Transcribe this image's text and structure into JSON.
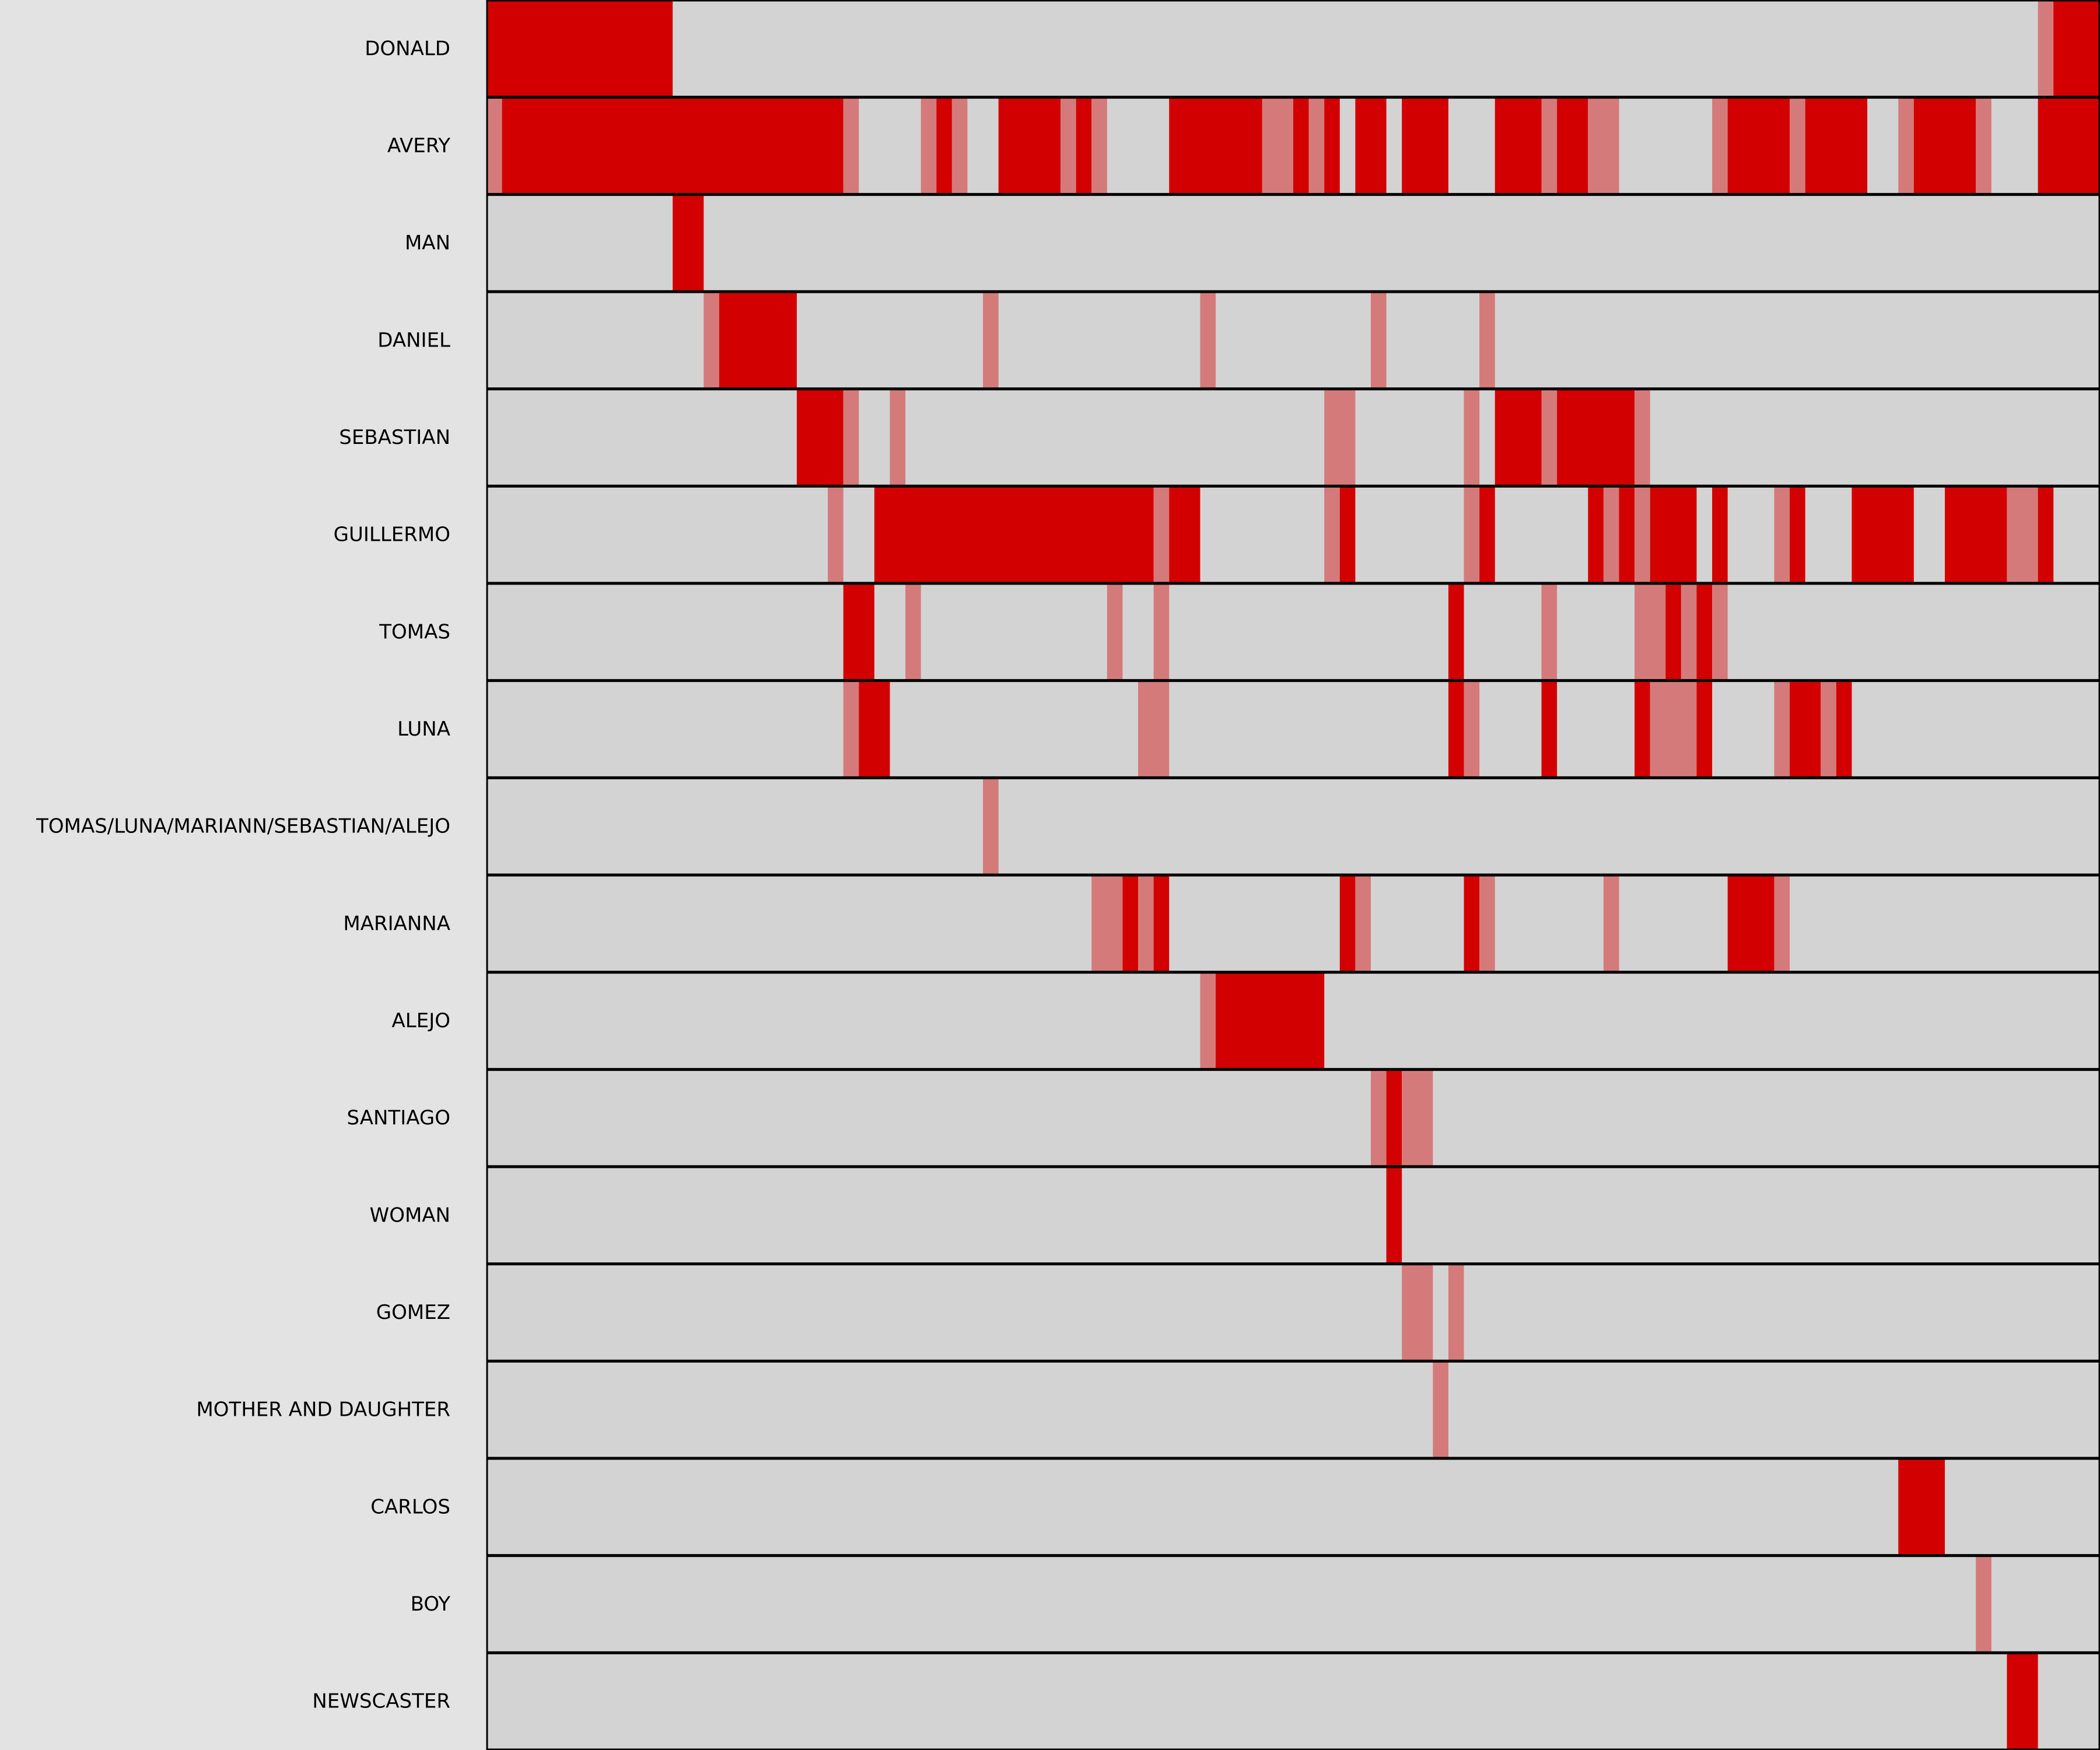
{
  "chart_data": {
    "type": "heatmap",
    "title": "",
    "xlabel": "",
    "ylabel": "",
    "xlim": [
      0,
      104
    ],
    "grid": false,
    "colors": {
      "background": "#e3e3e3",
      "track": "#d3d3d3",
      "strong": "#d30000",
      "weak": "#d57a7a",
      "border": "#000000",
      "label": "#000000"
    },
    "value_legend": {
      "strong": "dark red segment",
      "weak": "light red segment"
    },
    "rows": [
      {
        "label": "DONALD",
        "segments": [
          {
            "start": 0,
            "end": 12,
            "level": "strong"
          },
          {
            "start": 100,
            "end": 101,
            "level": "weak"
          },
          {
            "start": 101,
            "end": 104,
            "level": "strong"
          }
        ]
      },
      {
        "label": "AVERY",
        "segments": [
          {
            "start": 0,
            "end": 1,
            "level": "weak"
          },
          {
            "start": 1,
            "end": 23,
            "level": "strong"
          },
          {
            "start": 23,
            "end": 24,
            "level": "weak"
          },
          {
            "start": 28,
            "end": 29,
            "level": "weak"
          },
          {
            "start": 29,
            "end": 30,
            "level": "strong"
          },
          {
            "start": 30,
            "end": 31,
            "level": "weak"
          },
          {
            "start": 33,
            "end": 37,
            "level": "strong"
          },
          {
            "start": 37,
            "end": 38,
            "level": "weak"
          },
          {
            "start": 38,
            "end": 39,
            "level": "strong"
          },
          {
            "start": 39,
            "end": 40,
            "level": "weak"
          },
          {
            "start": 44,
            "end": 50,
            "level": "strong"
          },
          {
            "start": 50,
            "end": 52,
            "level": "weak"
          },
          {
            "start": 52,
            "end": 53,
            "level": "strong"
          },
          {
            "start": 53,
            "end": 54,
            "level": "weak"
          },
          {
            "start": 54,
            "end": 55,
            "level": "strong"
          },
          {
            "start": 56,
            "end": 58,
            "level": "strong"
          },
          {
            "start": 59,
            "end": 62,
            "level": "strong"
          },
          {
            "start": 65,
            "end": 68,
            "level": "strong"
          },
          {
            "start": 68,
            "end": 69,
            "level": "weak"
          },
          {
            "start": 69,
            "end": 71,
            "level": "strong"
          },
          {
            "start": 71,
            "end": 73,
            "level": "weak"
          },
          {
            "start": 79,
            "end": 80,
            "level": "weak"
          },
          {
            "start": 80,
            "end": 84,
            "level": "strong"
          },
          {
            "start": 84,
            "end": 85,
            "level": "weak"
          },
          {
            "start": 85,
            "end": 89,
            "level": "strong"
          },
          {
            "start": 91,
            "end": 92,
            "level": "weak"
          },
          {
            "start": 92,
            "end": 96,
            "level": "strong"
          },
          {
            "start": 96,
            "end": 97,
            "level": "weak"
          },
          {
            "start": 100,
            "end": 104,
            "level": "strong"
          }
        ]
      },
      {
        "label": "MAN",
        "segments": [
          {
            "start": 12,
            "end": 14,
            "level": "strong"
          }
        ]
      },
      {
        "label": "DANIEL",
        "segments": [
          {
            "start": 14,
            "end": 15,
            "level": "weak"
          },
          {
            "start": 15,
            "end": 20,
            "level": "strong"
          },
          {
            "start": 32,
            "end": 33,
            "level": "weak"
          },
          {
            "start": 46,
            "end": 47,
            "level": "weak"
          },
          {
            "start": 57,
            "end": 58,
            "level": "weak"
          },
          {
            "start": 64,
            "end": 65,
            "level": "weak"
          }
        ]
      },
      {
        "label": "SEBASTIAN",
        "segments": [
          {
            "start": 20,
            "end": 23,
            "level": "strong"
          },
          {
            "start": 23,
            "end": 24,
            "level": "weak"
          },
          {
            "start": 26,
            "end": 27,
            "level": "weak"
          },
          {
            "start": 54,
            "end": 56,
            "level": "weak"
          },
          {
            "start": 63,
            "end": 64,
            "level": "weak"
          },
          {
            "start": 65,
            "end": 68,
            "level": "strong"
          },
          {
            "start": 68,
            "end": 69,
            "level": "weak"
          },
          {
            "start": 69,
            "end": 74,
            "level": "strong"
          },
          {
            "start": 74,
            "end": 75,
            "level": "weak"
          }
        ]
      },
      {
        "label": "GUILLERMO",
        "segments": [
          {
            "start": 22,
            "end": 23,
            "level": "weak"
          },
          {
            "start": 25,
            "end": 43,
            "level": "strong"
          },
          {
            "start": 43,
            "end": 44,
            "level": "weak"
          },
          {
            "start": 44,
            "end": 46,
            "level": "strong"
          },
          {
            "start": 54,
            "end": 55,
            "level": "weak"
          },
          {
            "start": 55,
            "end": 56,
            "level": "strong"
          },
          {
            "start": 63,
            "end": 64,
            "level": "weak"
          },
          {
            "start": 64,
            "end": 65,
            "level": "strong"
          },
          {
            "start": 71,
            "end": 72,
            "level": "strong"
          },
          {
            "start": 72,
            "end": 73,
            "level": "weak"
          },
          {
            "start": 73,
            "end": 74,
            "level": "strong"
          },
          {
            "start": 74,
            "end": 75,
            "level": "weak"
          },
          {
            "start": 75,
            "end": 78,
            "level": "strong"
          },
          {
            "start": 79,
            "end": 80,
            "level": "strong"
          },
          {
            "start": 83,
            "end": 84,
            "level": "weak"
          },
          {
            "start": 84,
            "end": 85,
            "level": "strong"
          },
          {
            "start": 88,
            "end": 92,
            "level": "strong"
          },
          {
            "start": 94,
            "end": 98,
            "level": "strong"
          },
          {
            "start": 98,
            "end": 100,
            "level": "weak"
          },
          {
            "start": 100,
            "end": 101,
            "level": "strong"
          }
        ]
      },
      {
        "label": "TOMAS",
        "segments": [
          {
            "start": 23,
            "end": 25,
            "level": "strong"
          },
          {
            "start": 27,
            "end": 28,
            "level": "weak"
          },
          {
            "start": 40,
            "end": 41,
            "level": "weak"
          },
          {
            "start": 43,
            "end": 44,
            "level": "weak"
          },
          {
            "start": 62,
            "end": 63,
            "level": "strong"
          },
          {
            "start": 68,
            "end": 69,
            "level": "weak"
          },
          {
            "start": 74,
            "end": 76,
            "level": "weak"
          },
          {
            "start": 76,
            "end": 77,
            "level": "strong"
          },
          {
            "start": 77,
            "end": 78,
            "level": "weak"
          },
          {
            "start": 78,
            "end": 79,
            "level": "strong"
          },
          {
            "start": 79,
            "end": 80,
            "level": "weak"
          }
        ]
      },
      {
        "label": "LUNA",
        "segments": [
          {
            "start": 23,
            "end": 24,
            "level": "weak"
          },
          {
            "start": 24,
            "end": 26,
            "level": "strong"
          },
          {
            "start": 42,
            "end": 44,
            "level": "weak"
          },
          {
            "start": 62,
            "end": 63,
            "level": "strong"
          },
          {
            "start": 63,
            "end": 64,
            "level": "weak"
          },
          {
            "start": 68,
            "end": 69,
            "level": "strong"
          },
          {
            "start": 74,
            "end": 75,
            "level": "strong"
          },
          {
            "start": 75,
            "end": 78,
            "level": "weak"
          },
          {
            "start": 78,
            "end": 79,
            "level": "strong"
          },
          {
            "start": 83,
            "end": 84,
            "level": "weak"
          },
          {
            "start": 84,
            "end": 86,
            "level": "strong"
          },
          {
            "start": 86,
            "end": 87,
            "level": "weak"
          },
          {
            "start": 87,
            "end": 88,
            "level": "strong"
          }
        ]
      },
      {
        "label": "TOMAS/LUNA/MARIANN/SEBASTIAN/ALEJO",
        "segments": [
          {
            "start": 32,
            "end": 33,
            "level": "weak"
          }
        ]
      },
      {
        "label": "MARIANNA",
        "segments": [
          {
            "start": 39,
            "end": 41,
            "level": "weak"
          },
          {
            "start": 41,
            "end": 42,
            "level": "strong"
          },
          {
            "start": 42,
            "end": 43,
            "level": "weak"
          },
          {
            "start": 43,
            "end": 44,
            "level": "strong"
          },
          {
            "start": 55,
            "end": 56,
            "level": "strong"
          },
          {
            "start": 56,
            "end": 57,
            "level": "weak"
          },
          {
            "start": 63,
            "end": 64,
            "level": "strong"
          },
          {
            "start": 64,
            "end": 65,
            "level": "weak"
          },
          {
            "start": 72,
            "end": 73,
            "level": "weak"
          },
          {
            "start": 80,
            "end": 83,
            "level": "strong"
          },
          {
            "start": 83,
            "end": 84,
            "level": "weak"
          }
        ]
      },
      {
        "label": "ALEJO",
        "segments": [
          {
            "start": 46,
            "end": 47,
            "level": "weak"
          },
          {
            "start": 47,
            "end": 54,
            "level": "strong"
          }
        ]
      },
      {
        "label": "SANTIAGO",
        "segments": [
          {
            "start": 57,
            "end": 58,
            "level": "weak"
          },
          {
            "start": 58,
            "end": 59,
            "level": "strong"
          },
          {
            "start": 59,
            "end": 61,
            "level": "weak"
          }
        ]
      },
      {
        "label": "WOMAN",
        "segments": [
          {
            "start": 58,
            "end": 59,
            "level": "strong"
          }
        ]
      },
      {
        "label": "GOMEZ",
        "segments": [
          {
            "start": 59,
            "end": 61,
            "level": "weak"
          },
          {
            "start": 62,
            "end": 63,
            "level": "weak"
          }
        ]
      },
      {
        "label": "MOTHER AND DAUGHTER",
        "segments": [
          {
            "start": 61,
            "end": 62,
            "level": "weak"
          }
        ]
      },
      {
        "label": "CARLOS",
        "segments": [
          {
            "start": 91,
            "end": 94,
            "level": "strong"
          }
        ]
      },
      {
        "label": "BOY",
        "segments": [
          {
            "start": 96,
            "end": 97,
            "level": "weak"
          }
        ]
      },
      {
        "label": "NEWSCASTER",
        "segments": [
          {
            "start": 98,
            "end": 100,
            "level": "strong"
          }
        ]
      }
    ]
  }
}
